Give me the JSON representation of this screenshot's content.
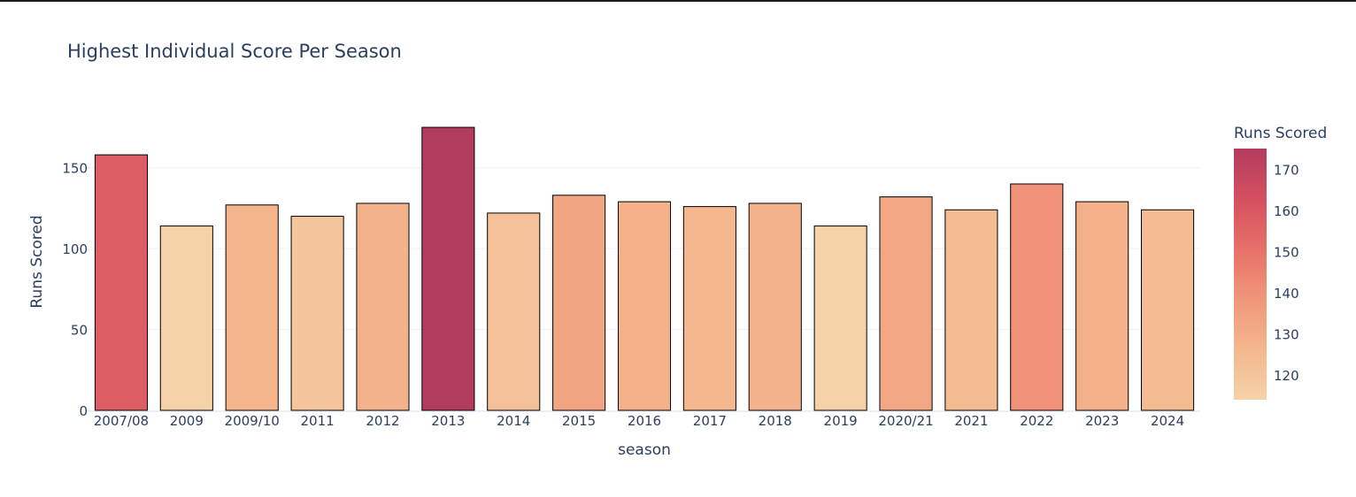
{
  "chart_data": {
    "type": "bar",
    "title": "Highest Individual Score Per Season",
    "xlabel": "season",
    "ylabel": "Runs Scored",
    "categories": [
      "2007/08",
      "2009",
      "2009/10",
      "2011",
      "2012",
      "2013",
      "2014",
      "2015",
      "2016",
      "2017",
      "2018",
      "2019",
      "2020/21",
      "2021",
      "2022",
      "2023",
      "2024"
    ],
    "values": [
      158,
      114,
      127,
      120,
      128,
      175,
      122,
      133,
      129,
      126,
      128,
      114,
      132,
      124,
      140,
      129,
      124
    ],
    "ylim": [
      0,
      175
    ],
    "yticks": [
      0,
      50,
      100,
      150
    ],
    "grid": "horizontal",
    "legend": "colorbar right",
    "colorbar": {
      "title": "Runs Scored",
      "range": [
        114,
        175
      ],
      "ticks": [
        120,
        130,
        140,
        150,
        160,
        170
      ]
    },
    "colorscale": [
      "#f5d2a8",
      "#f4b78e",
      "#f0977a",
      "#e77068",
      "#d5505f",
      "#b23c5e"
    ],
    "colors": {
      "text": "#2a3f5f",
      "grid": "#ebf0f8",
      "bar_outline": "#000000"
    }
  }
}
